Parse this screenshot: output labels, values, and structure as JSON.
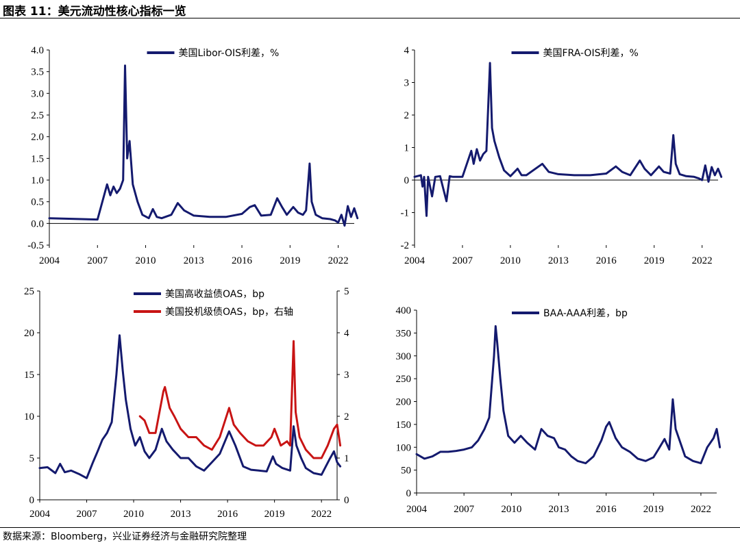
{
  "title": "图表 11：美元流动性核心指标一览",
  "source": "数据来源：Bloomberg，兴业证券经济与金融研究院整理",
  "colors": {
    "navy": "#141a6e",
    "red": "#c81414",
    "axis": "#000000"
  },
  "chart_data": [
    {
      "type": "line",
      "x_ticks": [
        "2004",
        "2007",
        "2010",
        "2013",
        "2016",
        "2019",
        "2022"
      ],
      "xlim": [
        2004,
        2023
      ],
      "ylim": [
        -0.5,
        4.0
      ],
      "y_ticks": [
        "-0.5",
        "0.0",
        "0.5",
        "1.0",
        "1.5",
        "2.0",
        "2.5",
        "3.0",
        "3.5",
        "4.0"
      ],
      "zero_line": true,
      "legend": "top-center",
      "series": [
        {
          "name": "美国Libor-OIS利差，%",
          "color": "#141a6e",
          "x": [
            2004.0,
            2005.0,
            2006.0,
            2007.0,
            2007.6,
            2007.8,
            2008.0,
            2008.2,
            2008.4,
            2008.6,
            2008.72,
            2008.85,
            2009.0,
            2009.2,
            2009.5,
            2009.8,
            2010.2,
            2010.45,
            2010.7,
            2011.0,
            2011.6,
            2012.0,
            2012.4,
            2013.0,
            2014.0,
            2015.0,
            2016.0,
            2016.5,
            2016.8,
            2017.2,
            2017.8,
            2018.2,
            2018.5,
            2018.8,
            2019.2,
            2019.5,
            2019.8,
            2020.0,
            2020.22,
            2020.35,
            2020.6,
            2021.0,
            2021.5,
            2021.8,
            2022.0,
            2022.2,
            2022.4,
            2022.6,
            2022.8,
            2023.0,
            2023.2
          ],
          "y": [
            0.12,
            0.11,
            0.1,
            0.09,
            0.9,
            0.65,
            0.85,
            0.7,
            0.8,
            1.0,
            3.64,
            1.5,
            1.9,
            0.9,
            0.5,
            0.2,
            0.12,
            0.33,
            0.15,
            0.12,
            0.2,
            0.47,
            0.3,
            0.18,
            0.15,
            0.15,
            0.22,
            0.38,
            0.42,
            0.18,
            0.2,
            0.58,
            0.38,
            0.2,
            0.38,
            0.25,
            0.2,
            0.3,
            1.38,
            0.5,
            0.2,
            0.12,
            0.1,
            0.07,
            0.02,
            0.2,
            -0.05,
            0.4,
            0.15,
            0.35,
            0.12
          ]
        }
      ]
    },
    {
      "type": "line",
      "x_ticks": [
        "2004",
        "2007",
        "2010",
        "2013",
        "2016",
        "2019",
        "2022"
      ],
      "xlim": [
        2004,
        2023
      ],
      "ylim": [
        -2,
        4
      ],
      "y_ticks": [
        "-2",
        "-1",
        "0",
        "1",
        "2",
        "3",
        "4"
      ],
      "zero_line": true,
      "legend": "top-center",
      "series": [
        {
          "name": "美国FRA-OIS利差，%",
          "color": "#141a6e",
          "x": [
            2004.0,
            2004.4,
            2004.5,
            2004.6,
            2004.75,
            2004.85,
            2005.1,
            2005.3,
            2005.6,
            2006.0,
            2006.2,
            2006.4,
            2007.0,
            2007.55,
            2007.7,
            2007.9,
            2008.1,
            2008.3,
            2008.5,
            2008.72,
            2008.85,
            2009.0,
            2009.3,
            2009.6,
            2010.0,
            2010.45,
            2010.7,
            2011.0,
            2012.0,
            2012.4,
            2013.0,
            2014.0,
            2015.0,
            2016.0,
            2016.6,
            2017.0,
            2017.5,
            2018.1,
            2018.4,
            2018.8,
            2019.3,
            2019.6,
            2020.0,
            2020.2,
            2020.35,
            2020.6,
            2021.0,
            2021.5,
            2021.8,
            2022.0,
            2022.2,
            2022.4,
            2022.6,
            2022.8,
            2023.0,
            2023.2
          ],
          "y": [
            0.1,
            0.15,
            -0.2,
            0.1,
            -1.1,
            0.1,
            -0.5,
            0.1,
            0.12,
            -0.65,
            0.12,
            0.1,
            0.1,
            0.9,
            0.5,
            0.95,
            0.6,
            0.8,
            0.9,
            3.6,
            1.6,
            1.2,
            0.7,
            0.3,
            0.12,
            0.35,
            0.15,
            0.15,
            0.5,
            0.25,
            0.18,
            0.15,
            0.15,
            0.2,
            0.42,
            0.25,
            0.15,
            0.6,
            0.35,
            0.15,
            0.42,
            0.25,
            0.2,
            1.38,
            0.5,
            0.18,
            0.12,
            0.1,
            0.05,
            0.0,
            0.45,
            -0.05,
            0.4,
            0.15,
            0.35,
            0.1
          ]
        }
      ]
    },
    {
      "type": "line",
      "x_ticks": [
        "2004",
        "2007",
        "2010",
        "2013",
        "2016",
        "2019",
        "2022"
      ],
      "xlim": [
        2004,
        2023
      ],
      "ylim": [
        0,
        25
      ],
      "y_ticks": [
        "0",
        "5",
        "10",
        "15",
        "20",
        "25"
      ],
      "y2lim": [
        0,
        5
      ],
      "y2_ticks": [
        "0",
        "1",
        "2",
        "3",
        "4",
        "5"
      ],
      "legend": "top-center",
      "series": [
        {
          "name": "美国高收益债OAS，bp",
          "color": "#141a6e",
          "axis": "left",
          "x": [
            2004.0,
            2004.5,
            2005.0,
            2005.3,
            2005.6,
            2006.0,
            2006.5,
            2007.0,
            2007.4,
            2007.7,
            2008.0,
            2008.3,
            2008.6,
            2008.9,
            2009.1,
            2009.3,
            2009.5,
            2009.8,
            2010.1,
            2010.4,
            2010.7,
            2011.0,
            2011.4,
            2011.8,
            2012.1,
            2012.5,
            2013.0,
            2013.5,
            2014.0,
            2014.5,
            2015.0,
            2015.5,
            2016.1,
            2016.5,
            2017.0,
            2017.5,
            2018.0,
            2018.5,
            2018.9,
            2019.1,
            2019.5,
            2020.0,
            2020.22,
            2020.4,
            2020.7,
            2021.0,
            2021.5,
            2022.0,
            2022.5,
            2022.8,
            2023.0,
            2023.2
          ],
          "y": [
            3.8,
            3.9,
            3.2,
            4.3,
            3.3,
            3.5,
            3.1,
            2.6,
            4.5,
            5.8,
            7.2,
            8.0,
            9.3,
            15.0,
            19.7,
            15.5,
            12.0,
            8.5,
            6.5,
            7.5,
            5.8,
            5.0,
            6.0,
            8.5,
            7.0,
            6.0,
            5.0,
            5.0,
            4.0,
            3.5,
            4.5,
            5.5,
            8.2,
            6.5,
            4.0,
            3.6,
            3.5,
            3.4,
            5.2,
            4.3,
            3.8,
            3.5,
            8.8,
            6.5,
            5.0,
            3.8,
            3.2,
            3.0,
            4.8,
            5.8,
            4.5,
            4.0
          ]
        },
        {
          "name": "美国投机级债OAS，bp，右轴",
          "color": "#c81414",
          "axis": "right",
          "x": [
            2010.4,
            2010.7,
            2011.0,
            2011.4,
            2011.9,
            2012.0,
            2012.3,
            2012.6,
            2013.0,
            2013.5,
            2014.0,
            2014.5,
            2015.0,
            2015.5,
            2016.1,
            2016.4,
            2016.8,
            2017.3,
            2017.8,
            2018.3,
            2018.8,
            2019.0,
            2019.4,
            2019.8,
            2020.0,
            2020.22,
            2020.35,
            2020.6,
            2021.0,
            2021.5,
            2022.0,
            2022.4,
            2022.8,
            2023.0,
            2023.2
          ],
          "y": [
            2.0,
            1.9,
            1.6,
            1.6,
            2.6,
            2.7,
            2.2,
            2.0,
            1.7,
            1.5,
            1.5,
            1.3,
            1.2,
            1.5,
            2.2,
            1.8,
            1.6,
            1.4,
            1.3,
            1.3,
            1.5,
            1.7,
            1.3,
            1.4,
            1.3,
            3.8,
            2.1,
            1.5,
            1.2,
            1.0,
            1.0,
            1.3,
            1.7,
            1.8,
            1.3
          ]
        }
      ]
    },
    {
      "type": "line",
      "x_ticks": [
        "2004",
        "2007",
        "2010",
        "2013",
        "2016",
        "2019",
        "2022"
      ],
      "xlim": [
        2004,
        2023
      ],
      "ylim": [
        0,
        400
      ],
      "y_ticks": [
        "0",
        "50",
        "100",
        "150",
        "200",
        "250",
        "300",
        "350",
        "400"
      ],
      "legend": "top-center",
      "series": [
        {
          "name": "BAA-AAA利差，bp",
          "color": "#141a6e",
          "x": [
            2004.0,
            2004.5,
            2005.0,
            2005.5,
            2006.0,
            2006.5,
            2007.0,
            2007.5,
            2007.9,
            2008.3,
            2008.6,
            2008.9,
            2009.0,
            2009.1,
            2009.3,
            2009.5,
            2009.8,
            2010.2,
            2010.6,
            2011.0,
            2011.5,
            2011.9,
            2012.3,
            2012.7,
            2013.0,
            2013.4,
            2013.8,
            2014.2,
            2014.7,
            2015.2,
            2015.7,
            2016.0,
            2016.2,
            2016.6,
            2017.0,
            2017.5,
            2018.0,
            2018.5,
            2019.0,
            2019.3,
            2019.7,
            2020.0,
            2020.22,
            2020.4,
            2020.7,
            2021.0,
            2021.5,
            2022.0,
            2022.4,
            2022.8,
            2023.0,
            2023.2
          ],
          "y": [
            85,
            75,
            80,
            90,
            90,
            92,
            95,
            100,
            115,
            140,
            165,
            300,
            365,
            330,
            250,
            180,
            125,
            110,
            125,
            110,
            95,
            140,
            125,
            120,
            100,
            95,
            80,
            70,
            65,
            80,
            115,
            145,
            155,
            120,
            100,
            90,
            75,
            70,
            78,
            95,
            118,
            95,
            205,
            140,
            110,
            80,
            70,
            65,
            100,
            120,
            140,
            100
          ]
        }
      ]
    }
  ]
}
